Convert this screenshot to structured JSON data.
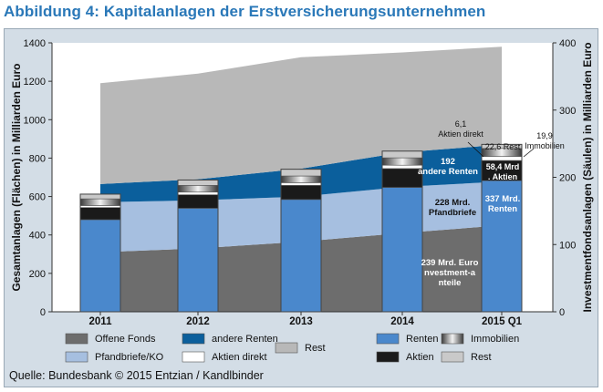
{
  "figure": {
    "title": "Abbildung 4: Kapitalanlagen der Erstversicherungsunternehmen",
    "source": "Quelle: Bundesbank © 2015 Entzian / Kandlbinder"
  },
  "chart_data": {
    "type": "area",
    "x_categories": [
      "2011",
      "2012",
      "2013",
      "2014",
      "2015 Q1"
    ],
    "left_axis": {
      "label": "Gesamtanlagen (Flächen) in Milliarden Euro",
      "min": 0,
      "max": 1400,
      "ticks": [
        "0",
        "200",
        "400",
        "600",
        "800",
        "1000",
        "1200",
        "1400"
      ]
    },
    "right_axis": {
      "label": "Investmentfondsanlagen (Säulen) in Milliarden Euro",
      "min": 0,
      "max": 400,
      "ticks": [
        "0",
        "100",
        "200",
        "300",
        "400"
      ]
    },
    "area_series": [
      {
        "name": "Offene Fonds",
        "color": "#6d6d6d",
        "values": [
          310,
          330,
          365,
          410,
          450
        ]
      },
      {
        "name": "Pfandbriefe/KO",
        "color": "#a6bfe0",
        "values": [
          260,
          250,
          235,
          240,
          228
        ]
      },
      {
        "name": "andere Renten",
        "color": "#0b5f9c",
        "values": [
          95,
          110,
          145,
          180,
          192
        ]
      },
      {
        "name": "Rest",
        "color": "#b8b8b8",
        "values": [
          525,
          550,
          580,
          520,
          510
        ]
      }
    ],
    "bar_series": [
      {
        "name": "Renten",
        "color": "#4a88cc",
        "values": [
          137,
          154,
          167,
          185,
          195
        ]
      },
      {
        "name": "Aktien",
        "color": "#1a1a1a",
        "values": [
          18,
          20,
          21,
          28,
          30
        ]
      },
      {
        "name": "Aktien direkt",
        "color": "#ffffff",
        "values": [
          3,
          4,
          4,
          5,
          6
        ]
      },
      {
        "name": "Immobilien",
        "color": "#8c8c8c",
        "values": [
          10,
          10,
          10,
          11,
          12
        ]
      },
      {
        "name": "Rest",
        "color": "#c9c9c9",
        "values": [
          7,
          8,
          10,
          10,
          6
        ]
      }
    ],
    "annotations": {
      "offene_fonds": "239 Mrd. Euro Investment-anteile",
      "pfandbriefe": "228 Mrd. Pfandbriefe",
      "andere_renten": "192 andere Renten",
      "renten": "337 Mrd. Renten",
      "aktien": "58,4 Mrd. Aktien",
      "rest": "22,6 Rest",
      "immobilien": "19,9 Immobilien",
      "aktien_direkt": "6,1 Aktien direkt"
    },
    "legend": [
      {
        "label": "Offene Fonds",
        "swatch": "#6d6d6d"
      },
      {
        "label": "andere Renten",
        "swatch": "#0b5f9c"
      },
      {
        "label": "Rest",
        "swatch": "#b8b8b8"
      },
      {
        "label": "Renten",
        "swatch": "#4a88cc"
      },
      {
        "label": "Immobilien",
        "swatch": "immobilien"
      },
      {
        "label": "Pfandbriefe/KO",
        "swatch": "#a6bfe0"
      },
      {
        "label": "Aktien direkt",
        "swatch": "#ffffff"
      },
      {
        "label": "Aktien",
        "swatch": "#1a1a1a"
      },
      {
        "label": "Rest",
        "swatch": "#c9c9c9"
      }
    ]
  }
}
